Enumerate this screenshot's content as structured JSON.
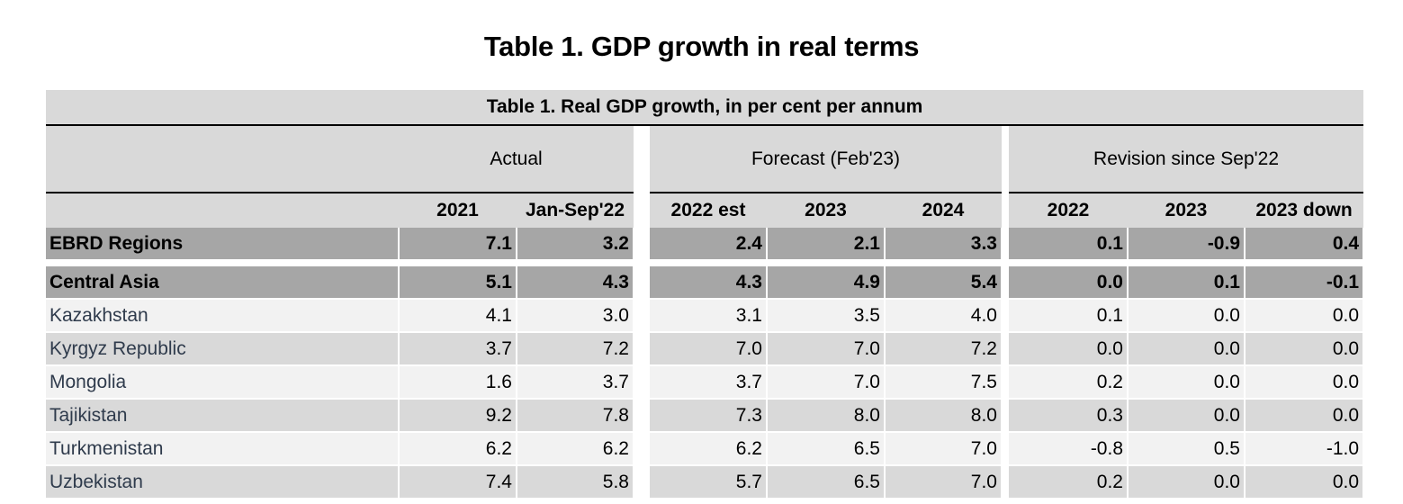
{
  "page_title": "Table 1. GDP growth in real terms",
  "table": {
    "caption": "Table 1. Real GDP growth, in per cent per annum",
    "groups": {
      "actual": "Actual",
      "forecast": "Forecast (Feb'23)",
      "revision": "Revision since Sep'22"
    },
    "columns": [
      "2021",
      "Jan-Sep'22",
      "2022 est",
      "2023",
      "2024",
      "2022",
      "2023",
      "2023 down"
    ],
    "rows": [
      {
        "name": "EBRD Regions",
        "values": [
          "7.1",
          "3.2",
          "2.4",
          "2.1",
          "3.3",
          "0.1",
          "-0.9",
          "0.4"
        ]
      },
      {
        "name": "Central Asia",
        "values": [
          "5.1",
          "4.3",
          "4.3",
          "4.9",
          "5.4",
          "0.0",
          "0.1",
          "-0.1"
        ]
      },
      {
        "name": "Kazakhstan",
        "values": [
          "4.1",
          "3.0",
          "3.1",
          "3.5",
          "4.0",
          "0.1",
          "0.0",
          "0.0"
        ]
      },
      {
        "name": "Kyrgyz Republic",
        "values": [
          "3.7",
          "7.2",
          "7.0",
          "7.0",
          "7.2",
          "0.0",
          "0.0",
          "0.0"
        ]
      },
      {
        "name": "Mongolia",
        "values": [
          "1.6",
          "3.7",
          "3.7",
          "7.0",
          "7.5",
          "0.2",
          "0.0",
          "0.0"
        ]
      },
      {
        "name": "Tajikistan",
        "values": [
          "9.2",
          "7.8",
          "7.3",
          "8.0",
          "8.0",
          "0.3",
          "0.0",
          "0.0"
        ]
      },
      {
        "name": "Turkmenistan",
        "values": [
          "6.2",
          "6.2",
          "6.2",
          "6.5",
          "7.0",
          "-0.8",
          "0.5",
          "-1.0"
        ]
      },
      {
        "name": "Uzbekistan",
        "values": [
          "7.4",
          "5.8",
          "5.7",
          "6.5",
          "7.0",
          "0.2",
          "0.0",
          "0.0"
        ]
      }
    ]
  }
}
